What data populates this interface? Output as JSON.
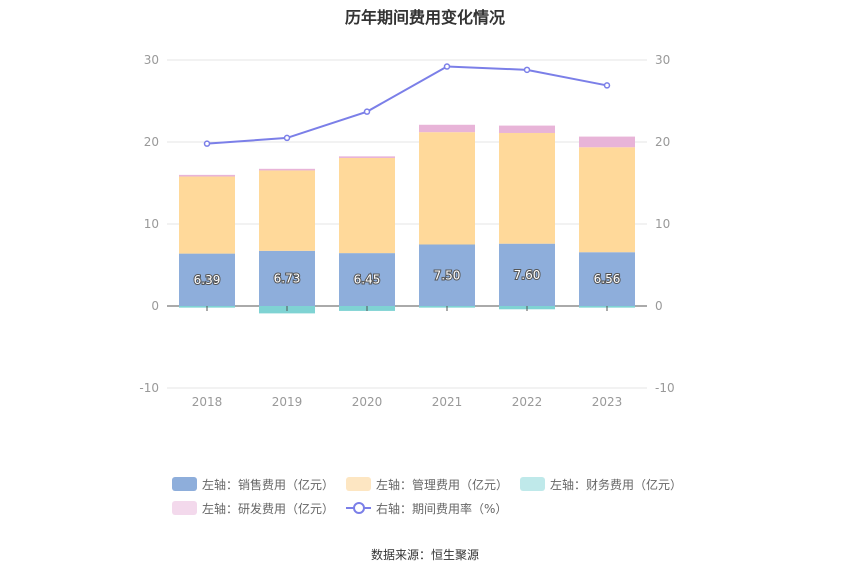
{
  "title": "历年期间费用变化情况",
  "source": "数据来源：恒生聚源",
  "chart_data": {
    "type": "bar",
    "stacked": true,
    "categories": [
      "2018",
      "2019",
      "2020",
      "2021",
      "2022",
      "2023"
    ],
    "left_axis": {
      "ylim": [
        -10,
        30
      ],
      "ticks": [
        "-10",
        "0",
        "10",
        "20",
        "30"
      ]
    },
    "right_axis": {
      "ylim": [
        -10,
        30
      ],
      "ticks": [
        "-10",
        "0",
        "10",
        "20",
        "30"
      ]
    },
    "series": [
      {
        "name": "左轴：销售费用（亿元）",
        "type": "bar",
        "color": "#8eaedb",
        "values": [
          6.39,
          6.73,
          6.45,
          7.5,
          7.6,
          6.56
        ],
        "labels": [
          "6.39",
          "6.73",
          "6.45",
          "7.50",
          "7.60",
          "6.56"
        ]
      },
      {
        "name": "左轴：管理费用（亿元）",
        "type": "bar",
        "color": "#ffd99a",
        "values": [
          9.4,
          9.8,
          11.6,
          13.7,
          13.5,
          12.8
        ]
      },
      {
        "name": "左轴：财务费用（亿元）",
        "type": "bar",
        "color": "#7fd3d3",
        "values": [
          -0.2,
          -0.9,
          -0.6,
          -0.2,
          -0.4,
          -0.2
        ]
      },
      {
        "name": "左轴：研发费用（亿元）",
        "type": "bar",
        "color": "#e8b4d8",
        "values": [
          0.2,
          0.2,
          0.2,
          0.9,
          0.9,
          1.3
        ]
      },
      {
        "name": "右轴：期间费用率（%）",
        "type": "line",
        "color": "#7b7fe8",
        "values": [
          19.8,
          20.5,
          23.7,
          29.2,
          28.8,
          26.9
        ]
      }
    ],
    "legend_position": "bottom",
    "grid": true
  },
  "legend_colors": {
    "sales": "#8eaedb",
    "admin": "#fde6c2",
    "finance": "#bfe9ea",
    "rnd": "#f3d9ec",
    "rate": "#7b7fe8"
  }
}
